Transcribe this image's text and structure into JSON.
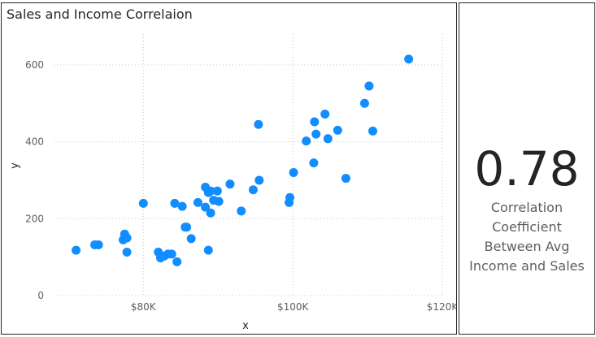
{
  "chart_data": {
    "type": "scatter",
    "title": "Sales and Income Correlaion",
    "xlabel": "x",
    "ylabel": "y",
    "xlim": [
      68000,
      120000
    ],
    "ylim": [
      0,
      680
    ],
    "xticks": [
      80000,
      100000,
      120000
    ],
    "xtick_labels": [
      "$80K",
      "$100K",
      "$120K"
    ],
    "yticks": [
      0,
      200,
      400,
      600
    ],
    "ytick_labels": [
      "0",
      "200",
      "400",
      "600"
    ],
    "grid": true,
    "point_color": "#118dff",
    "points": [
      [
        71000,
        118
      ],
      [
        73500,
        132
      ],
      [
        74000,
        132
      ],
      [
        77300,
        145
      ],
      [
        77500,
        160
      ],
      [
        77800,
        150
      ],
      [
        77800,
        113
      ],
      [
        80000,
        240
      ],
      [
        82000,
        113
      ],
      [
        82300,
        98
      ],
      [
        82800,
        103
      ],
      [
        83300,
        108
      ],
      [
        83800,
        108
      ],
      [
        84200,
        240
      ],
      [
        84500,
        88
      ],
      [
        85200,
        232
      ],
      [
        85600,
        178
      ],
      [
        85800,
        178
      ],
      [
        86400,
        148
      ],
      [
        87300,
        242
      ],
      [
        88300,
        282
      ],
      [
        88300,
        230
      ],
      [
        88700,
        118
      ],
      [
        88700,
        268
      ],
      [
        89000,
        272
      ],
      [
        89000,
        215
      ],
      [
        89400,
        248
      ],
      [
        89900,
        272
      ],
      [
        90100,
        245
      ],
      [
        91600,
        290
      ],
      [
        93100,
        220
      ],
      [
        94700,
        275
      ],
      [
        95400,
        445
      ],
      [
        95500,
        300
      ],
      [
        99500,
        242
      ],
      [
        99600,
        255
      ],
      [
        100100,
        320
      ],
      [
        101800,
        402
      ],
      [
        102800,
        345
      ],
      [
        102900,
        452
      ],
      [
        103100,
        420
      ],
      [
        104300,
        472
      ],
      [
        104700,
        408
      ],
      [
        106000,
        430
      ],
      [
        107100,
        305
      ],
      [
        109600,
        500
      ],
      [
        110200,
        545
      ],
      [
        110700,
        428
      ],
      [
        115500,
        615
      ]
    ]
  },
  "card": {
    "value": "0.78",
    "label": "Correlation Coefficient Between Avg Income and Sales"
  }
}
